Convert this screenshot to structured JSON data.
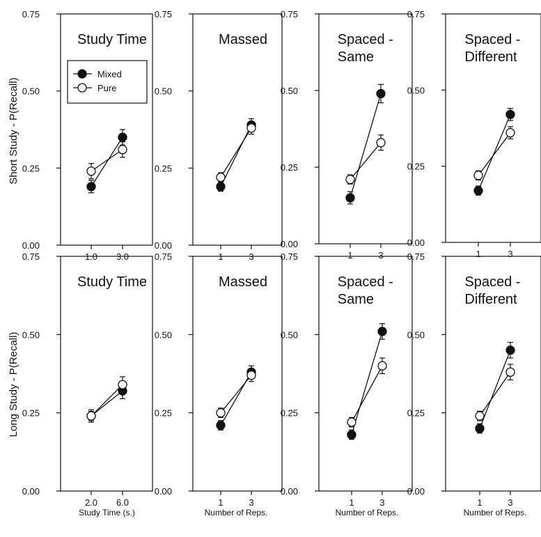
{
  "legend": {
    "items": [
      {
        "label": "Mixed",
        "fill": "#111111"
      },
      {
        "label": "Pure",
        "fill": "#ffffff"
      }
    ],
    "placement": "inside first panel, top-left"
  },
  "row_labels": [
    "Short Study - P(Recall)",
    "Long Study - P(Recall)"
  ],
  "y_ticks": [
    "0.00",
    "0.25",
    "0.50",
    "0.75"
  ],
  "ylim": [
    0,
    0.75
  ],
  "chart_data": [
    {
      "type": "line",
      "title_lines": [
        "Study Time"
      ],
      "categories": [
        "1.0",
        "3.0"
      ],
      "xlabel": "",
      "ylabel": "Short Study - P(Recall)",
      "ylim": [
        0,
        0.75
      ],
      "series": [
        {
          "name": "Mixed",
          "values": [
            0.19,
            0.35
          ],
          "errors": [
            0.02,
            0.025
          ]
        },
        {
          "name": "Pure",
          "values": [
            0.24,
            0.31
          ],
          "errors": [
            0.025,
            0.025
          ]
        }
      ]
    },
    {
      "type": "line",
      "title_lines": [
        "Massed"
      ],
      "categories": [
        "1",
        "3"
      ],
      "xlabel": "",
      "ylabel": "",
      "ylim": [
        0,
        0.75
      ],
      "series": [
        {
          "name": "Mixed",
          "values": [
            0.19,
            0.39
          ],
          "errors": [
            0.015,
            0.02
          ]
        },
        {
          "name": "Pure",
          "values": [
            0.22,
            0.38
          ],
          "errors": [
            0.015,
            0.02
          ]
        }
      ]
    },
    {
      "type": "line",
      "title_lines": [
        "Spaced -",
        "Same"
      ],
      "categories": [
        "1",
        "3"
      ],
      "xlabel": "",
      "ylabel": "",
      "ylim": [
        0,
        0.75
      ],
      "series": [
        {
          "name": "Mixed",
          "values": [
            0.15,
            0.49
          ],
          "errors": [
            0.02,
            0.03
          ]
        },
        {
          "name": "Pure",
          "values": [
            0.21,
            0.33
          ],
          "errors": [
            0.015,
            0.025
          ]
        }
      ]
    },
    {
      "type": "line",
      "title_lines": [
        "Spaced -",
        "Different"
      ],
      "categories": [
        "1",
        "3"
      ],
      "xlabel": "",
      "ylabel": "",
      "ylim": [
        0,
        0.75
      ],
      "series": [
        {
          "name": "Mixed",
          "values": [
            0.17,
            0.42
          ],
          "errors": [
            0.015,
            0.02
          ]
        },
        {
          "name": "Pure",
          "values": [
            0.22,
            0.36
          ],
          "errors": [
            0.015,
            0.02
          ]
        }
      ]
    },
    {
      "type": "line",
      "title_lines": [
        "Study Time"
      ],
      "categories": [
        "2.0",
        "6.0"
      ],
      "xlabel": "Study Time (s.)",
      "ylabel": "Long Study - P(Recall)",
      "ylim": [
        0,
        0.75
      ],
      "series": [
        {
          "name": "Mixed",
          "values": [
            0.24,
            0.32
          ],
          "errors": [
            0.02,
            0.025
          ]
        },
        {
          "name": "Pure",
          "values": [
            0.24,
            0.34
          ],
          "errors": [
            0.015,
            0.025
          ]
        }
      ]
    },
    {
      "type": "line",
      "title_lines": [
        "Massed"
      ],
      "categories": [
        "1",
        "3"
      ],
      "xlabel": "Number of Reps.",
      "ylabel": "",
      "ylim": [
        0,
        0.75
      ],
      "series": [
        {
          "name": "Mixed",
          "values": [
            0.21,
            0.38
          ],
          "errors": [
            0.015,
            0.02
          ]
        },
        {
          "name": "Pure",
          "values": [
            0.25,
            0.37
          ],
          "errors": [
            0.015,
            0.02
          ]
        }
      ]
    },
    {
      "type": "line",
      "title_lines": [
        "Spaced -",
        "Same"
      ],
      "categories": [
        "1",
        "3"
      ],
      "xlabel": "Number of Reps.",
      "ylabel": "",
      "ylim": [
        0,
        0.75
      ],
      "series": [
        {
          "name": "Mixed",
          "values": [
            0.18,
            0.51
          ],
          "errors": [
            0.015,
            0.025
          ]
        },
        {
          "name": "Pure",
          "values": [
            0.22,
            0.4
          ],
          "errors": [
            0.015,
            0.025
          ]
        }
      ]
    },
    {
      "type": "line",
      "title_lines": [
        "Spaced -",
        "Different"
      ],
      "categories": [
        "1",
        "3"
      ],
      "xlabel": "Number of Reps.",
      "ylabel": "",
      "ylim": [
        0,
        0.75
      ],
      "series": [
        {
          "name": "Mixed",
          "values": [
            0.2,
            0.45
          ],
          "errors": [
            0.015,
            0.025
          ]
        },
        {
          "name": "Pure",
          "values": [
            0.24,
            0.38
          ],
          "errors": [
            0.015,
            0.025
          ]
        }
      ]
    }
  ]
}
